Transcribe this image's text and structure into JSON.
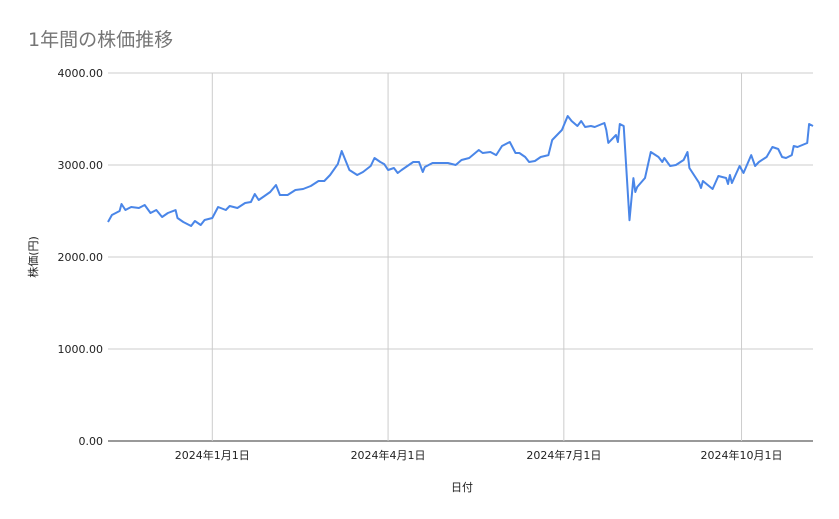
{
  "chart_data": {
    "type": "line",
    "title": "1年間の株価推移",
    "xlabel": "日付",
    "ylabel": "株価(円)",
    "ylim": [
      0,
      4000
    ],
    "xlim": [
      "2023-11-08",
      "2024-11-07"
    ],
    "grid": true,
    "legend": "none",
    "y_ticks": [
      "0.00",
      "1000.00",
      "2000.00",
      "3000.00",
      "4000.00"
    ],
    "y_tick_values": [
      0,
      1000,
      2000,
      3000,
      4000
    ],
    "x_ticks": [
      {
        "date": "2024-01-01",
        "label": "2024年1月1日"
      },
      {
        "date": "2024-04-01",
        "label": "2024年4月1日"
      },
      {
        "date": "2024-07-01",
        "label": "2024年7月1日"
      },
      {
        "date": "2024-10-01",
        "label": "2024年10月1日"
      }
    ],
    "series_color": "#4a86e8",
    "series": [
      {
        "points": [
          [
            "2023-11-08",
            2380
          ],
          [
            "2023-11-10",
            2456
          ],
          [
            "2023-11-14",
            2500
          ],
          [
            "2023-11-15",
            2576
          ],
          [
            "2023-11-17",
            2511
          ],
          [
            "2023-11-20",
            2543
          ],
          [
            "2023-11-24",
            2533
          ],
          [
            "2023-11-27",
            2565
          ],
          [
            "2023-11-30",
            2478
          ],
          [
            "2023-12-03",
            2511
          ],
          [
            "2023-12-06",
            2435
          ],
          [
            "2023-12-09",
            2478
          ],
          [
            "2023-12-13",
            2510
          ],
          [
            "2023-12-14",
            2424
          ],
          [
            "2023-12-17",
            2380
          ],
          [
            "2023-12-21",
            2337
          ],
          [
            "2023-12-23",
            2391
          ],
          [
            "2023-12-26",
            2348
          ],
          [
            "2023-12-28",
            2402
          ],
          [
            "2024-01-01",
            2424
          ],
          [
            "2024-01-04",
            2543
          ],
          [
            "2024-01-08",
            2511
          ],
          [
            "2024-01-10",
            2554
          ],
          [
            "2024-01-14",
            2533
          ],
          [
            "2024-01-18",
            2587
          ],
          [
            "2024-01-21",
            2598
          ],
          [
            "2024-01-23",
            2685
          ],
          [
            "2024-01-25",
            2620
          ],
          [
            "2024-01-28",
            2663
          ],
          [
            "2024-01-31",
            2707
          ],
          [
            "2024-02-03",
            2783
          ],
          [
            "2024-02-05",
            2674
          ],
          [
            "2024-02-09",
            2674
          ],
          [
            "2024-02-13",
            2728
          ],
          [
            "2024-02-17",
            2739
          ],
          [
            "2024-02-21",
            2772
          ],
          [
            "2024-02-25",
            2826
          ],
          [
            "2024-02-28",
            2826
          ],
          [
            "2024-03-02",
            2891
          ],
          [
            "2024-03-06",
            3010
          ],
          [
            "2024-03-08",
            3152
          ],
          [
            "2024-03-12",
            2946
          ],
          [
            "2024-03-16",
            2891
          ],
          [
            "2024-03-19",
            2924
          ],
          [
            "2024-03-23",
            2989
          ],
          [
            "2024-03-25",
            3076
          ],
          [
            "2024-03-28",
            3033
          ],
          [
            "2024-03-30",
            3010
          ],
          [
            "2024-04-01",
            2946
          ],
          [
            "2024-04-04",
            2967
          ],
          [
            "2024-04-06",
            2913
          ],
          [
            "2024-04-08",
            2946
          ],
          [
            "2024-04-11",
            2989
          ],
          [
            "2024-04-14",
            3033
          ],
          [
            "2024-04-17",
            3033
          ],
          [
            "2024-04-19",
            2924
          ],
          [
            "2024-04-20",
            2978
          ],
          [
            "2024-04-24",
            3022
          ],
          [
            "2024-04-28",
            3022
          ],
          [
            "2024-05-02",
            3022
          ],
          [
            "2024-05-06",
            3000
          ],
          [
            "2024-05-09",
            3054
          ],
          [
            "2024-05-13",
            3076
          ],
          [
            "2024-05-18",
            3163
          ],
          [
            "2024-05-20",
            3130
          ],
          [
            "2024-05-24",
            3141
          ],
          [
            "2024-05-27",
            3108
          ],
          [
            "2024-05-30",
            3206
          ],
          [
            "2024-06-03",
            3250
          ],
          [
            "2024-06-06",
            3130
          ],
          [
            "2024-06-08",
            3130
          ],
          [
            "2024-06-11",
            3087
          ],
          [
            "2024-06-13",
            3033
          ],
          [
            "2024-06-16",
            3043
          ],
          [
            "2024-06-19",
            3087
          ],
          [
            "2024-06-23",
            3108
          ],
          [
            "2024-06-25",
            3272
          ],
          [
            "2024-06-28",
            3337
          ],
          [
            "2024-06-30",
            3380
          ],
          [
            "2024-07-03",
            3533
          ],
          [
            "2024-07-05",
            3478
          ],
          [
            "2024-07-08",
            3424
          ],
          [
            "2024-07-10",
            3478
          ],
          [
            "2024-07-12",
            3413
          ],
          [
            "2024-07-15",
            3424
          ],
          [
            "2024-07-17",
            3413
          ],
          [
            "2024-07-22",
            3457
          ],
          [
            "2024-07-23",
            3380
          ],
          [
            "2024-07-24",
            3240
          ],
          [
            "2024-07-28",
            3326
          ],
          [
            "2024-07-29",
            3250
          ],
          [
            "2024-07-30",
            3446
          ],
          [
            "2024-08-01",
            3424
          ],
          [
            "2024-08-04",
            2400
          ],
          [
            "2024-08-06",
            2858
          ],
          [
            "2024-08-07",
            2707
          ],
          [
            "2024-08-08",
            2761
          ],
          [
            "2024-08-12",
            2859
          ],
          [
            "2024-08-15",
            3141
          ],
          [
            "2024-08-19",
            3087
          ],
          [
            "2024-08-21",
            3033
          ],
          [
            "2024-08-22",
            3076
          ],
          [
            "2024-08-25",
            2989
          ],
          [
            "2024-08-28",
            3000
          ],
          [
            "2024-09-01",
            3054
          ],
          [
            "2024-09-03",
            3141
          ],
          [
            "2024-09-04",
            2967
          ],
          [
            "2024-09-09",
            2808
          ],
          [
            "2024-09-10",
            2750
          ],
          [
            "2024-09-11",
            2826
          ],
          [
            "2024-09-16",
            2739
          ],
          [
            "2024-09-19",
            2880
          ],
          [
            "2024-09-23",
            2859
          ],
          [
            "2024-09-24",
            2793
          ],
          [
            "2024-09-25",
            2891
          ],
          [
            "2024-09-26",
            2804
          ],
          [
            "2024-09-30",
            2989
          ],
          [
            "2024-10-02",
            2913
          ],
          [
            "2024-10-06",
            3108
          ],
          [
            "2024-10-08",
            2989
          ],
          [
            "2024-10-10",
            3033
          ],
          [
            "2024-10-14",
            3087
          ],
          [
            "2024-10-17",
            3196
          ],
          [
            "2024-10-20",
            3174
          ],
          [
            "2024-10-22",
            3087
          ],
          [
            "2024-10-24",
            3076
          ],
          [
            "2024-10-27",
            3108
          ],
          [
            "2024-10-28",
            3206
          ],
          [
            "2024-10-30",
            3196
          ],
          [
            "2024-11-04",
            3239
          ],
          [
            "2024-11-05",
            3446
          ],
          [
            "2024-11-07",
            3424
          ]
        ]
      }
    ]
  }
}
